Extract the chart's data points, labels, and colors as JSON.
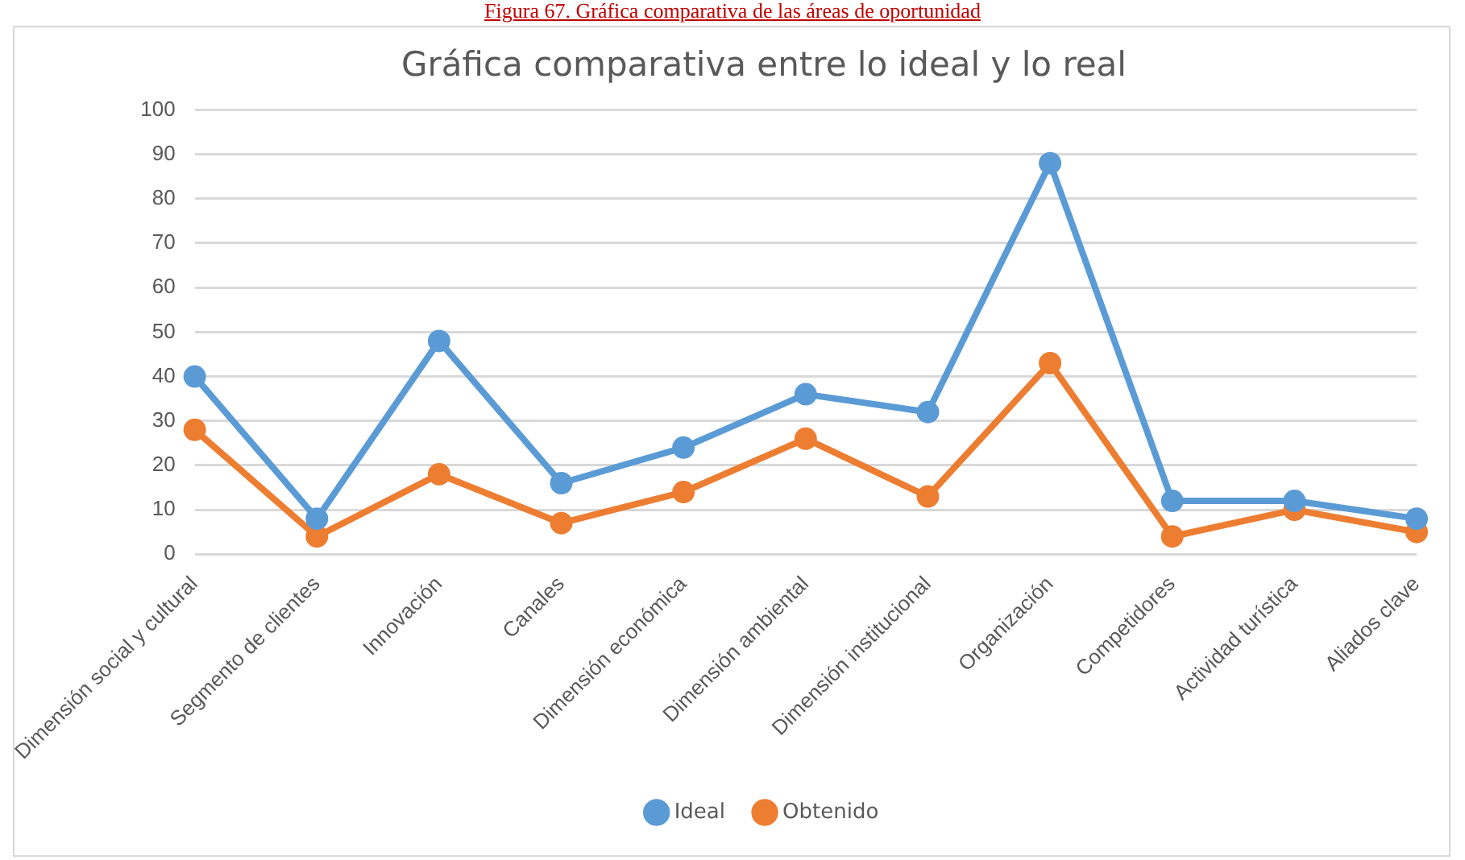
{
  "chart_data": {
    "type": "line",
    "title": "Gráfica comparativa entre lo ideal y lo real",
    "annotations": [
      "Figura 67.  Gráfica comparativa de las áreas de oportunidad"
    ],
    "categories": [
      "Dimensión social y cultural",
      "Segmento de clientes",
      "Innovación",
      "Canales",
      "Dimensión económica",
      "Dimensión ambiental",
      "Dimensión institucional",
      "Organización",
      "Competidores",
      "Actividad turística",
      "Aliados clave"
    ],
    "series": [
      {
        "name": "Ideal",
        "color": "#5b9bd5",
        "values": [
          40,
          8,
          48,
          16,
          24,
          36,
          32,
          88,
          12,
          12,
          8
        ]
      },
      {
        "name": "Obtenido",
        "color": "#ed7d31",
        "values": [
          28,
          4,
          18,
          7,
          14,
          26,
          13,
          43,
          4,
          10,
          5
        ]
      }
    ],
    "ylim": [
      0,
      100
    ],
    "yticks": [
      0,
      10,
      20,
      30,
      40,
      50,
      60,
      70,
      80,
      90,
      100
    ],
    "grid": "y",
    "legend": "bottom",
    "marker": "circle",
    "line_style": "solid"
  }
}
